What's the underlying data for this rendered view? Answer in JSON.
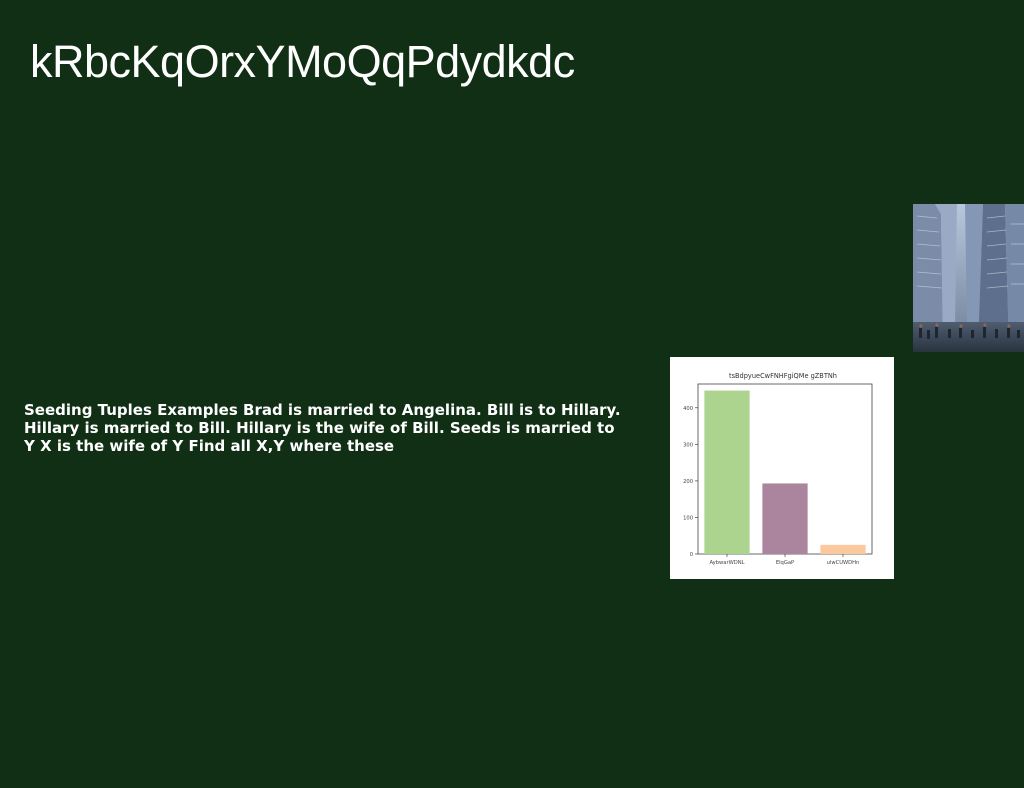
{
  "slide": {
    "title": "kRbcKqOrxYMoQqPdydkdc",
    "body": "Seeding Tuples Examples Brad is married to Angelina. Bill is to Hillary. Hillary is married to Bill. Hillary is the wife of Bill. Seeds is married to Y X is the wife of Y Find all X,Y where these",
    "background_color": "#112f15"
  },
  "photo": {
    "subject": "city-street-buildings"
  },
  "chart_data": {
    "type": "bar",
    "title": "tsBdpyueCwFNHFgiQMe gZBTNh",
    "categories": [
      "AybwarWDNL",
      "ElqGaP",
      "ulwCUWDHn"
    ],
    "values": [
      447,
      193,
      25
    ],
    "colors": [
      "#acd48e",
      "#ab849e",
      "#fcc99f"
    ],
    "xlabel": "",
    "ylabel": "",
    "ylim": [
      0,
      465
    ],
    "yticks": [
      0,
      100,
      200,
      300,
      400
    ],
    "grid": false
  }
}
